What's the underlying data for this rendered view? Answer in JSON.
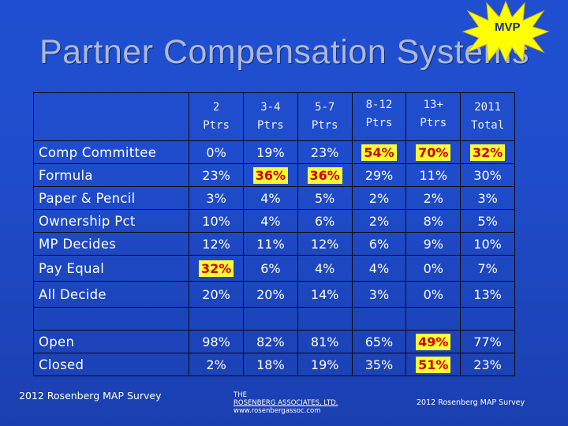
{
  "slide": {
    "title": "Partner Compensation Systems",
    "badge": "MVP"
  },
  "table": {
    "headers": [
      {
        "line1": "2",
        "line2": "Ptrs"
      },
      {
        "line1": "3-4",
        "line2": "Ptrs"
      },
      {
        "line1": "5-7",
        "line2": "Ptrs"
      },
      {
        "line1": "8-12",
        "line2": "Ptrs"
      },
      {
        "line1": "13+",
        "line2": "Ptrs"
      },
      {
        "line1": "2011",
        "line2": "Total"
      }
    ],
    "rows": [
      {
        "label": "Comp Committee",
        "values": [
          "0%",
          "19%",
          "23%",
          "54%",
          "70%",
          "32%"
        ]
      },
      {
        "label": "Formula",
        "values": [
          "23%",
          "36%",
          "36%",
          "29%",
          "11%",
          "30%"
        ]
      },
      {
        "label": "Paper & Pencil",
        "values": [
          "3%",
          "4%",
          "5%",
          "2%",
          "2%",
          "3%"
        ]
      },
      {
        "label": "Ownership Pct",
        "values": [
          "10%",
          "4%",
          "6%",
          "2%",
          "8%",
          "5%"
        ]
      },
      {
        "label": "MP Decides",
        "values": [
          "12%",
          "11%",
          "12%",
          "6%",
          "9%",
          "10%"
        ]
      },
      {
        "label": "Pay Equal",
        "values": [
          "32%",
          "6%",
          "4%",
          "4%",
          "0%",
          "7%"
        ]
      },
      {
        "label": "All Decide",
        "values": [
          "20%",
          "20%",
          "14%",
          "3%",
          "0%",
          "13%"
        ]
      },
      {
        "label": "Open",
        "values": [
          "98%",
          "82%",
          "81%",
          "65%",
          "49%",
          "77%"
        ]
      },
      {
        "label": "Closed",
        "values": [
          "2%",
          "18%",
          "19%",
          "35%",
          "51%",
          "23%"
        ]
      }
    ]
  },
  "footer": {
    "left": "2012 Rosenberg MAP Survey",
    "mid_line1": "THE",
    "mid_line2": "ROSENBERG ASSOCIATES, LTD.",
    "mid_line3": "www.rosenbergassoc.com",
    "right": "2012 Rosenberg MAP Survey"
  },
  "colors": {
    "background": "#1f4ccb",
    "highlight_bg": "#ffff33",
    "highlight_text": "#cc0000",
    "title": "#aeb8d6"
  }
}
